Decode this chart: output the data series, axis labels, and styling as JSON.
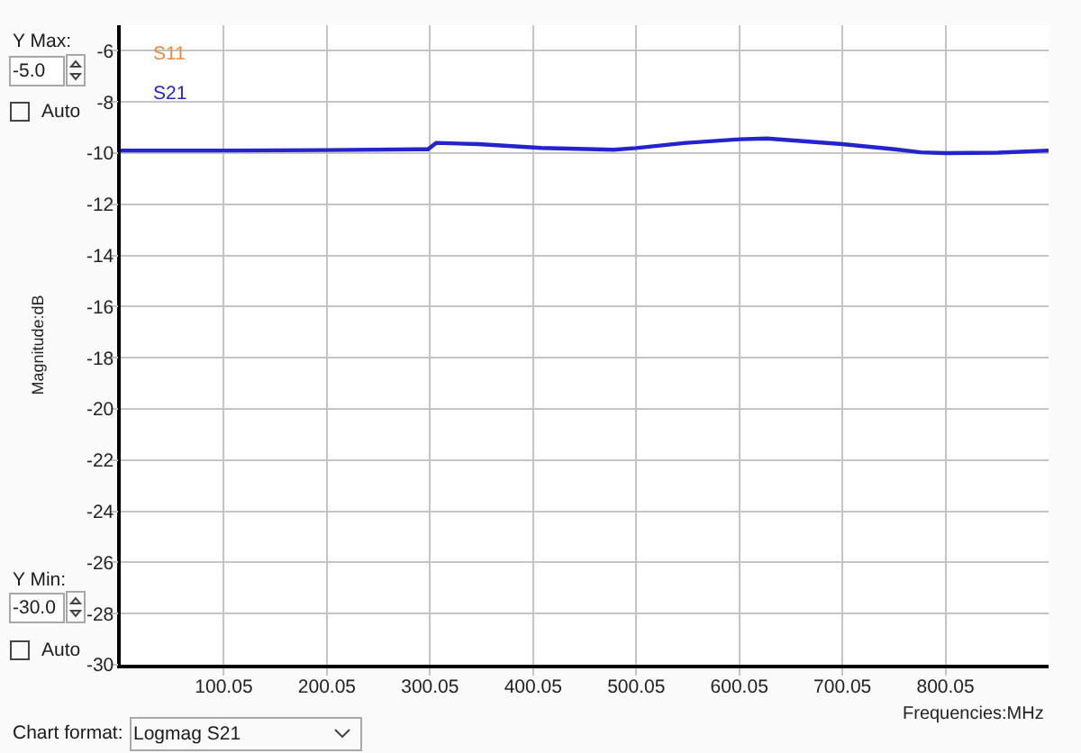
{
  "chart_data": {
    "type": "line",
    "xlabel": "Frequencies:MHz",
    "ylabel": "Magnitude:dB",
    "x": [
      0.05,
      100,
      200,
      289,
      298,
      306,
      347,
      408,
      478,
      500,
      548,
      600,
      627,
      700,
      751,
      776,
      800,
      851,
      900
    ],
    "series": [
      {
        "name": "S11",
        "color": "#f0883c",
        "values": [
          null,
          null,
          null,
          null,
          null,
          null,
          null,
          null,
          null,
          null,
          null,
          null,
          null,
          null,
          null,
          null,
          null,
          null,
          null
        ]
      },
      {
        "name": "S21",
        "color": "#2424cc",
        "values": [
          -9.9,
          -9.9,
          -9.88,
          -9.85,
          -9.85,
          -9.6,
          -9.65,
          -9.8,
          -9.87,
          -9.8,
          -9.6,
          -9.46,
          -9.43,
          -9.65,
          -9.85,
          -9.97,
          -10.0,
          -9.98,
          -9.9
        ]
      }
    ],
    "xlim": [
      0.05,
      900
    ],
    "xticks": [
      100.05,
      200.05,
      300.05,
      400.05,
      500.05,
      600.05,
      700.05,
      800.05
    ],
    "ylim": [
      -30,
      -5
    ],
    "yticks": [
      -30,
      -28,
      -26,
      -24,
      -22,
      -20,
      -18,
      -16,
      -14,
      -12,
      -10,
      -8,
      -6
    ],
    "grid": true,
    "legend": "top left",
    "line_style": "solid",
    "annotations": [
      "Y Max:",
      "-5.0",
      "Auto",
      "Y Min:",
      "-30.0",
      "Auto",
      "Chart format:",
      "Logmag S21"
    ]
  }
}
